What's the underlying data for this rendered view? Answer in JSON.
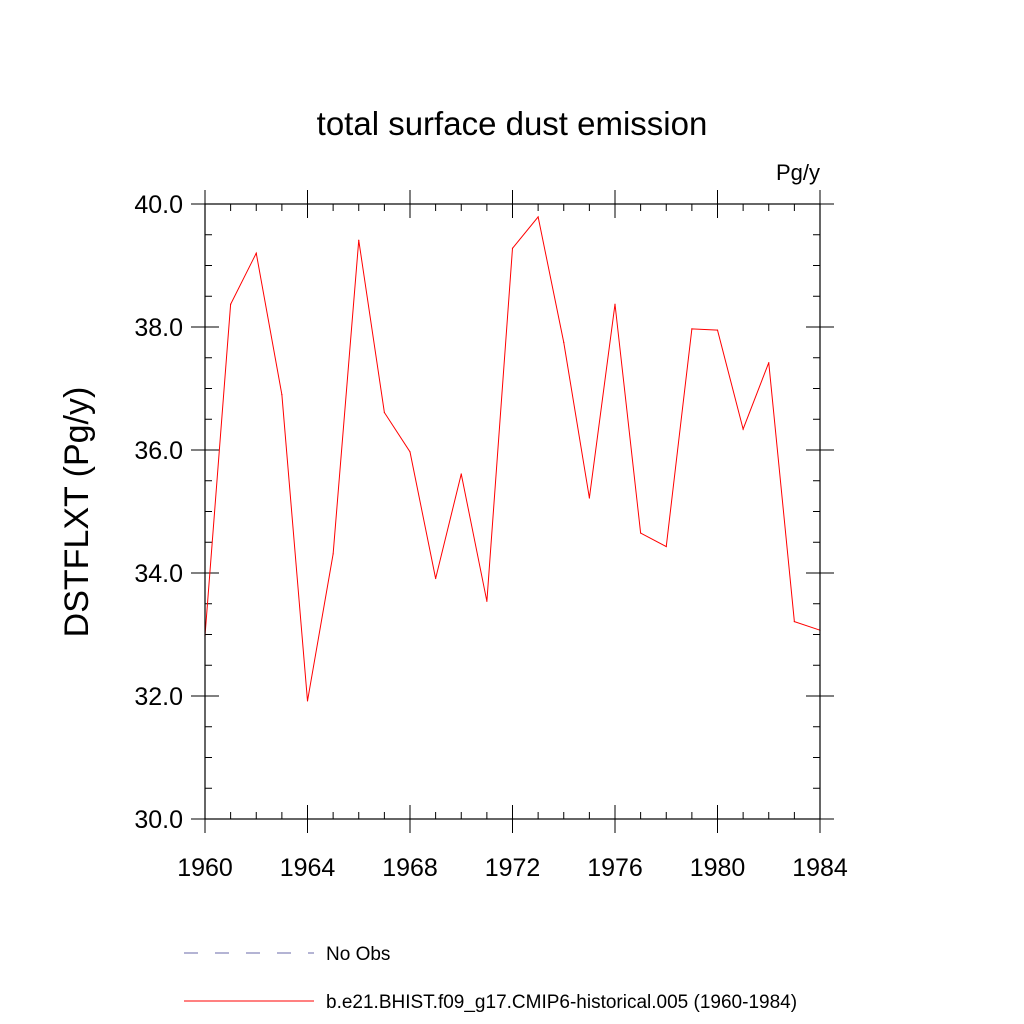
{
  "chart_data": {
    "type": "line",
    "title": "total surface dust emission",
    "units_label": "Pg/y",
    "xlabel": "",
    "ylabel": "DSTFLXT  (Pg/y)",
    "xlim": [
      1960,
      1984
    ],
    "ylim": [
      30.0,
      40.0
    ],
    "x_ticks": [
      1960,
      1964,
      1968,
      1972,
      1976,
      1980,
      1984
    ],
    "x_tick_labels": [
      "1960",
      "1964",
      "1968",
      "1972",
      "1976",
      "1980",
      "1984"
    ],
    "y_ticks": [
      30.0,
      32.0,
      34.0,
      36.0,
      38.0,
      40.0
    ],
    "y_tick_labels": [
      "30.0",
      "32.0",
      "34.0",
      "36.0",
      "38.0",
      "40.0"
    ],
    "x_minor_step": 1,
    "y_minor_step": 0.5,
    "grid": false,
    "series": [
      {
        "name": "No Obs",
        "color": "#6a6aa8",
        "style": "dashed",
        "x": [],
        "values": []
      },
      {
        "name": "b.e21.BHIST.f09_g17.CMIP6-historical.005 (1960-1984)",
        "color": "#ff0000",
        "style": "solid",
        "x": [
          1960,
          1961,
          1962,
          1963,
          1964,
          1965,
          1966,
          1967,
          1968,
          1969,
          1970,
          1971,
          1972,
          1973,
          1974,
          1975,
          1976,
          1977,
          1978,
          1979,
          1980,
          1981,
          1982,
          1983,
          1984
        ],
        "values": [
          32.98,
          38.37,
          39.2,
          36.9,
          31.92,
          34.31,
          39.41,
          36.61,
          35.97,
          33.91,
          35.61,
          33.54,
          39.28,
          39.79,
          37.75,
          35.22,
          38.37,
          34.65,
          34.43,
          37.97,
          37.95,
          36.34,
          37.42,
          33.21,
          33.07
        ]
      }
    ],
    "legend_placement": "bottom"
  }
}
